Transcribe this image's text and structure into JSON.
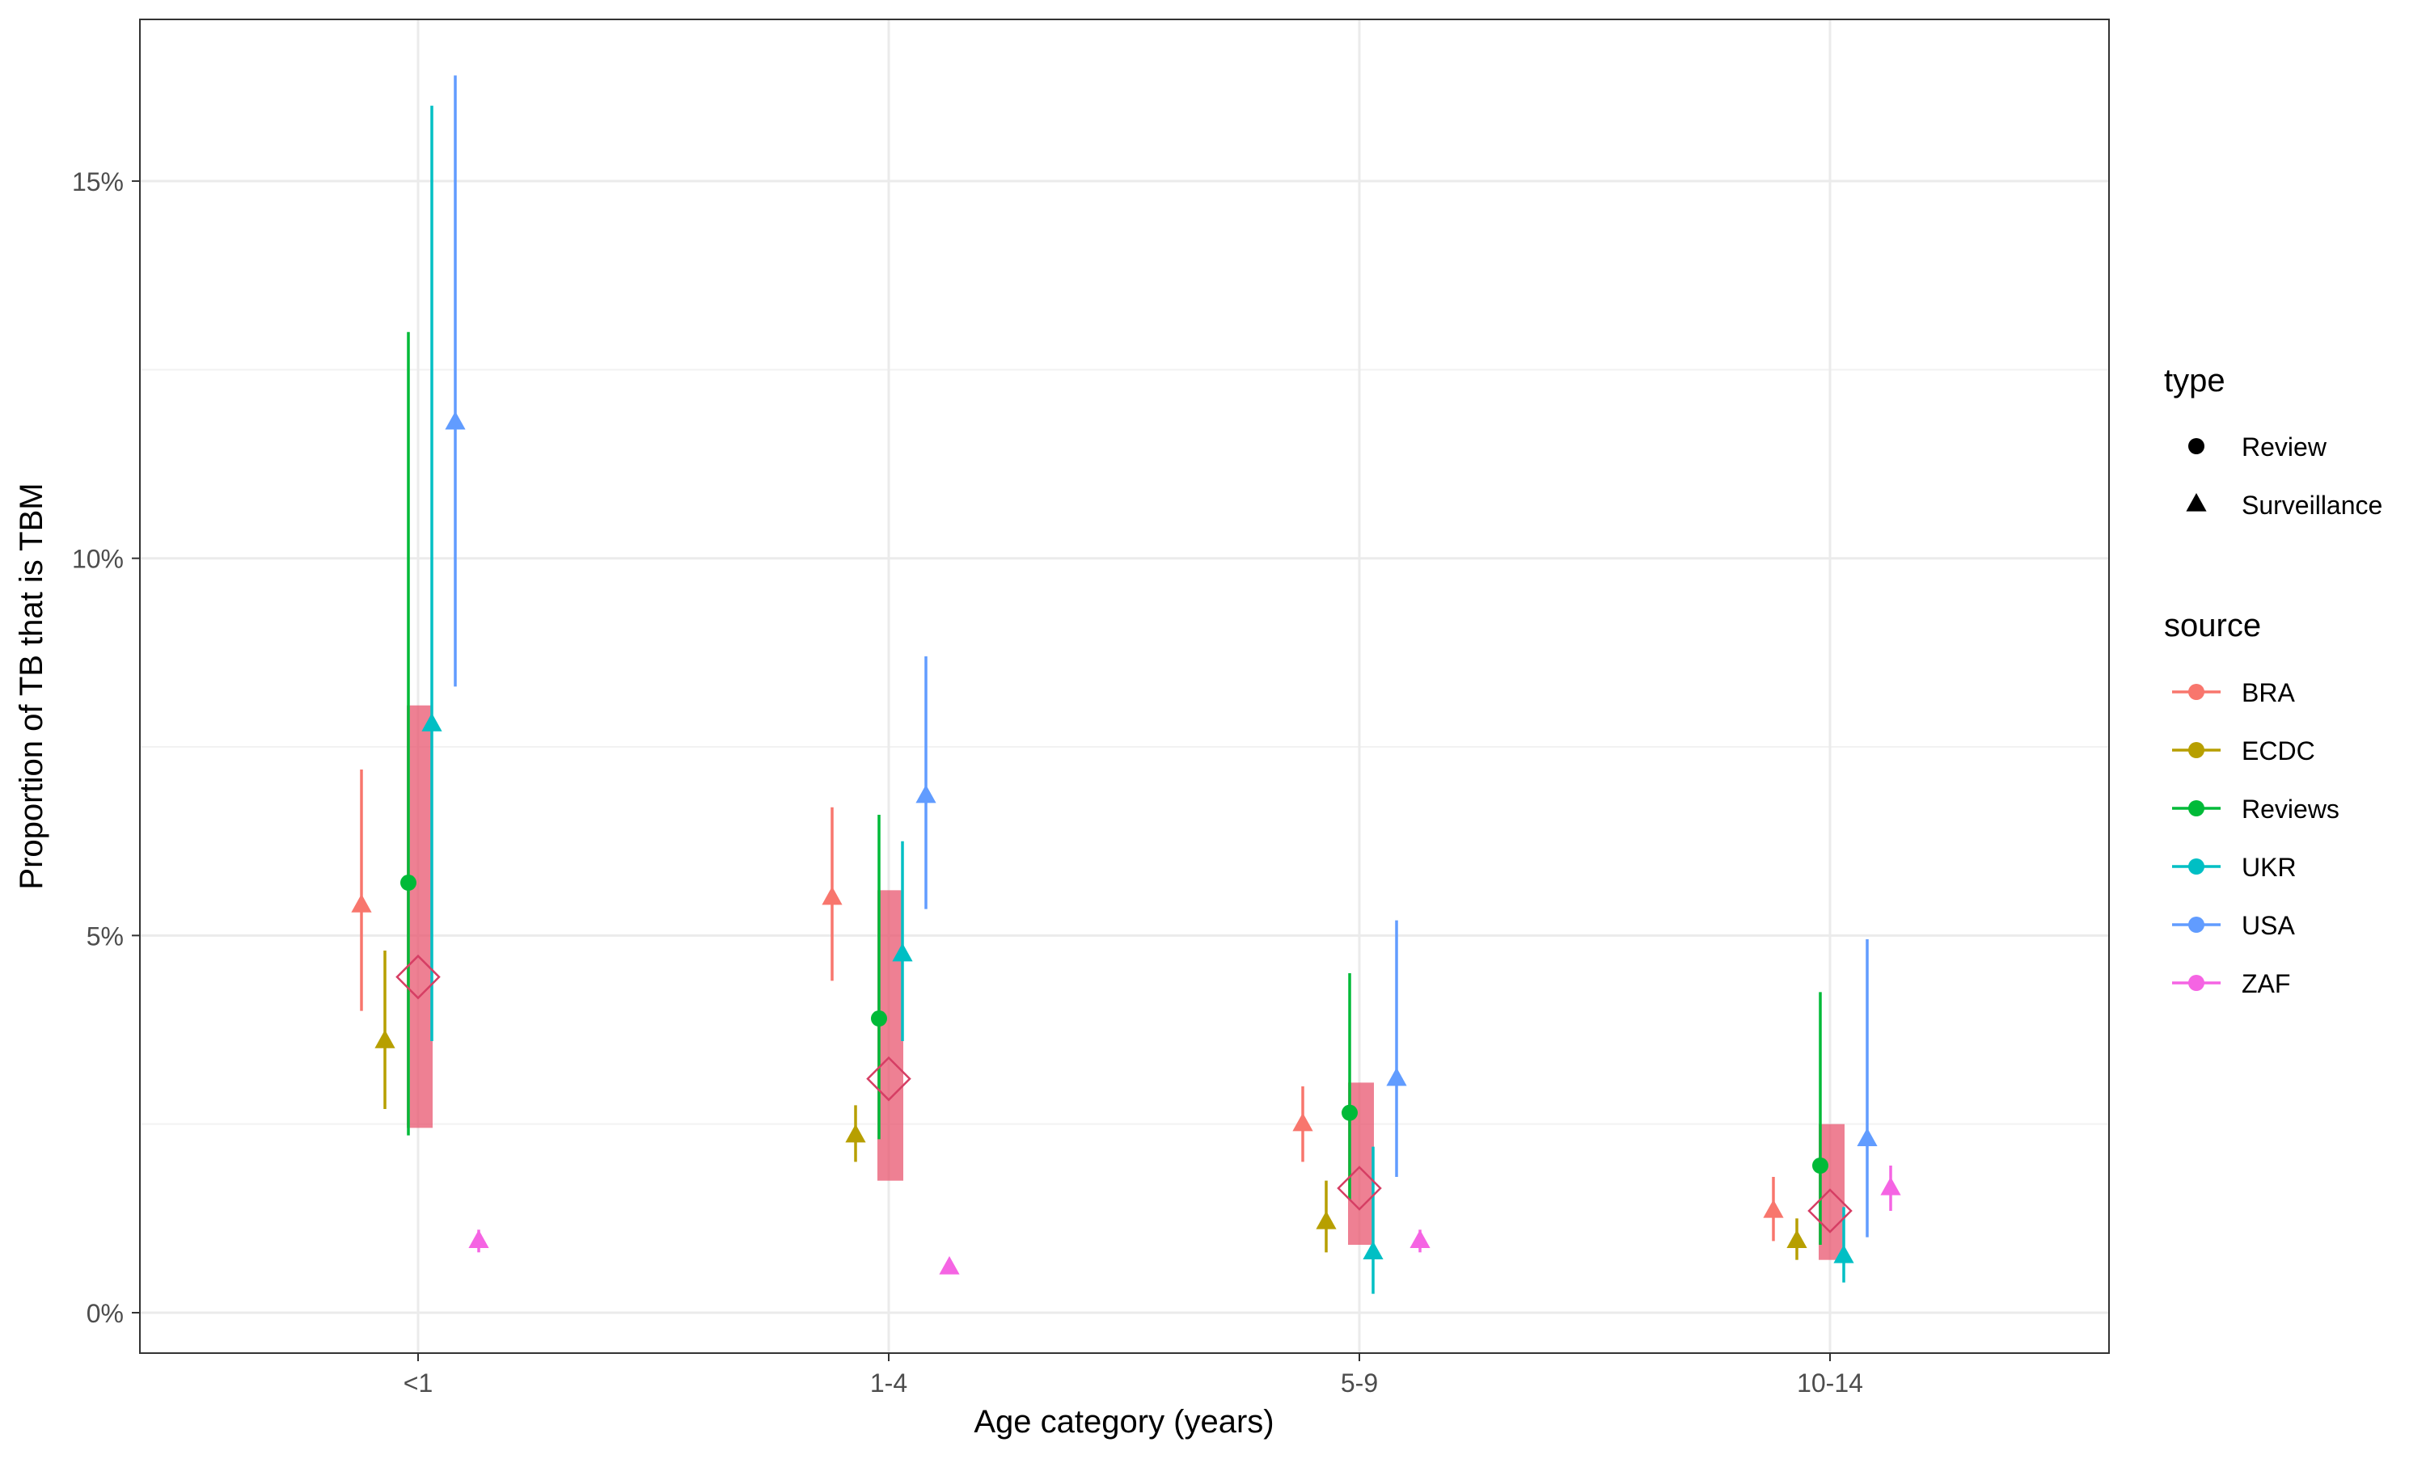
{
  "chart_data": {
    "type": "scatter",
    "title": "",
    "xlabel": "Age category (years)",
    "ylabel": "Proportion of TB that is TBM",
    "categories": [
      "<1",
      "1-4",
      "5-9",
      "10-14"
    ],
    "y_ticks": [
      0,
      5,
      10,
      15
    ],
    "y_tick_labels": [
      "0%",
      "5%",
      "10%",
      "15%"
    ],
    "ylim": [
      -0.55,
      17.2
    ],
    "grid": true,
    "legend_position": "right",
    "legend": {
      "type_title": "type",
      "type_entries": [
        {
          "label": "Review",
          "shape": "circle"
        },
        {
          "label": "Surveillance",
          "shape": "triangle"
        }
      ],
      "source_title": "source",
      "source_entries": [
        {
          "label": "BRA",
          "color": "#F8766D"
        },
        {
          "label": "ECDC",
          "color": "#B79F00"
        },
        {
          "label": "Reviews",
          "color": "#00BA38"
        },
        {
          "label": "UKR",
          "color": "#00BFC4"
        },
        {
          "label": "USA",
          "color": "#619CFF"
        },
        {
          "label": "ZAF",
          "color": "#F564E3"
        }
      ]
    },
    "series": [
      {
        "source": "BRA",
        "type": "Surveillance",
        "color": "#F8766D",
        "points": [
          {
            "category": "<1",
            "y": 5.4,
            "lo": 4.0,
            "hi": 7.2
          },
          {
            "category": "1-4",
            "y": 5.5,
            "lo": 4.4,
            "hi": 6.7
          },
          {
            "category": "5-9",
            "y": 2.5,
            "lo": 2.0,
            "hi": 3.0
          },
          {
            "category": "10-14",
            "y": 1.35,
            "lo": 0.95,
            "hi": 1.8
          }
        ]
      },
      {
        "source": "ECDC",
        "type": "Surveillance",
        "color": "#B79F00",
        "points": [
          {
            "category": "<1",
            "y": 3.6,
            "lo": 2.7,
            "hi": 4.8
          },
          {
            "category": "1-4",
            "y": 2.35,
            "lo": 2.0,
            "hi": 2.75
          },
          {
            "category": "5-9",
            "y": 1.2,
            "lo": 0.8,
            "hi": 1.75
          },
          {
            "category": "10-14",
            "y": 0.95,
            "lo": 0.7,
            "hi": 1.25
          }
        ]
      },
      {
        "source": "Reviews",
        "type": "Review",
        "color": "#00BA38",
        "points": [
          {
            "category": "<1",
            "y": 5.7,
            "lo": 2.35,
            "hi": 13.0
          },
          {
            "category": "1-4",
            "y": 3.9,
            "lo": 2.3,
            "hi": 6.6
          },
          {
            "category": "5-9",
            "y": 2.65,
            "lo": 1.5,
            "hi": 4.5
          },
          {
            "category": "10-14",
            "y": 1.95,
            "lo": 0.9,
            "hi": 4.25
          }
        ]
      },
      {
        "source": "UKR",
        "type": "Surveillance",
        "color": "#00BFC4",
        "points": [
          {
            "category": "<1",
            "y": 7.8,
            "lo": 3.6,
            "hi": 16.0
          },
          {
            "category": "1-4",
            "y": 4.75,
            "lo": 3.6,
            "hi": 6.25
          },
          {
            "category": "5-9",
            "y": 0.8,
            "lo": 0.25,
            "hi": 2.2
          },
          {
            "category": "10-14",
            "y": 0.75,
            "lo": 0.4,
            "hi": 1.4
          }
        ]
      },
      {
        "source": "USA",
        "type": "Surveillance",
        "color": "#619CFF",
        "points": [
          {
            "category": "<1",
            "y": 11.8,
            "lo": 8.3,
            "hi": 16.4
          },
          {
            "category": "1-4",
            "y": 6.85,
            "lo": 5.35,
            "hi": 8.7
          },
          {
            "category": "5-9",
            "y": 3.1,
            "lo": 1.8,
            "hi": 5.2
          },
          {
            "category": "10-14",
            "y": 2.3,
            "lo": 1.0,
            "hi": 4.95
          }
        ]
      },
      {
        "source": "ZAF",
        "type": "Surveillance",
        "color": "#F564E3",
        "points": [
          {
            "category": "<1",
            "y": 0.95,
            "lo": 0.8,
            "hi": 1.1
          },
          {
            "category": "1-4",
            "y": 0.6,
            "lo": 0.55,
            "hi": 0.65
          },
          {
            "category": "5-9",
            "y": 0.95,
            "lo": 0.8,
            "hi": 1.1
          },
          {
            "category": "10-14",
            "y": 1.65,
            "lo": 1.35,
            "hi": 1.95
          }
        ]
      }
    ],
    "pooled": {
      "color": "#E8566F",
      "points": [
        {
          "category": "<1",
          "y": 4.45,
          "lo": 2.45,
          "hi": 8.05
        },
        {
          "category": "1-4",
          "y": 3.1,
          "lo": 1.75,
          "hi": 5.6
        },
        {
          "category": "5-9",
          "y": 1.65,
          "lo": 0.9,
          "hi": 3.05
        },
        {
          "category": "10-14",
          "y": 1.35,
          "lo": 0.7,
          "hi": 2.5
        }
      ]
    }
  }
}
